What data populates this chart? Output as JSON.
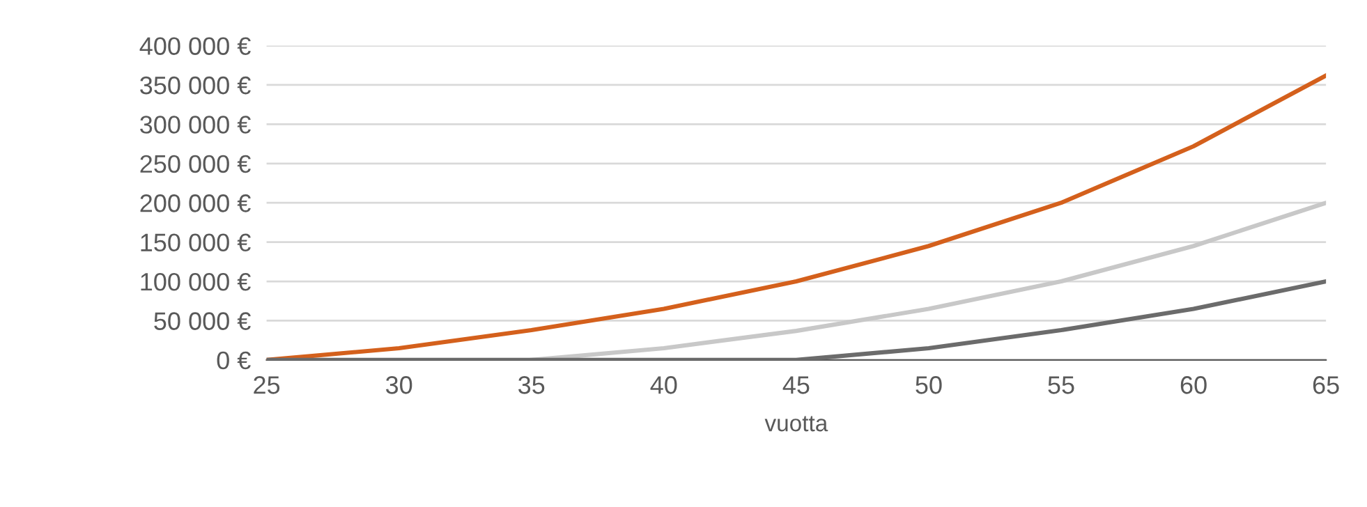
{
  "chart_data": {
    "type": "line",
    "xlabel": "vuotta",
    "grid": "y",
    "legend": false,
    "marker": "none",
    "line_style": "solid",
    "xlim": [
      25,
      65
    ],
    "xticks": [
      25,
      30,
      35,
      40,
      45,
      50,
      55,
      60,
      65
    ],
    "ylim": [
      0,
      400000
    ],
    "yticks": [
      {
        "value": 0,
        "label": "0 €"
      },
      {
        "value": 50000,
        "label": "50 000 €"
      },
      {
        "value": 100000,
        "label": "100 000 €"
      },
      {
        "value": 150000,
        "label": "150 000 €"
      },
      {
        "value": 200000,
        "label": "200 000 €"
      },
      {
        "value": 250000,
        "label": "250 000 €"
      },
      {
        "value": 300000,
        "label": "300 000 €"
      },
      {
        "value": 350000,
        "label": "350 000 €"
      },
      {
        "value": 400000,
        "label": "400 000 €"
      }
    ],
    "series": [
      {
        "color": "#d4601c",
        "x": [
          25,
          30,
          35,
          40,
          45,
          50,
          55,
          60,
          65
        ],
        "values": [
          0,
          15000,
          38000,
          65000,
          100000,
          145000,
          200000,
          272000,
          362000
        ]
      },
      {
        "color": "#c8c8c8",
        "x": [
          35,
          40,
          45,
          50,
          55,
          60,
          65
        ],
        "values": [
          0,
          15000,
          37000,
          65000,
          100000,
          145000,
          200000
        ]
      },
      {
        "color": "#6b6b6b",
        "x": [
          25,
          45,
          50,
          55,
          60,
          65
        ],
        "values": [
          0,
          0,
          15000,
          38000,
          65000,
          100000
        ]
      }
    ]
  }
}
